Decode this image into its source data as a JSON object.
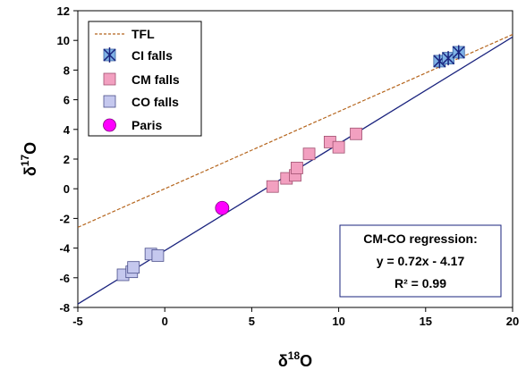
{
  "chart_data": {
    "type": "scatter",
    "xlabel": {
      "base": "δ",
      "sup": "18",
      "rest": "O"
    },
    "ylabel": {
      "base": "δ",
      "sup": "17",
      "rest": "O"
    },
    "xlim": [
      -5,
      20
    ],
    "ylim": [
      -8,
      12
    ],
    "xticks": [
      -5,
      0,
      5,
      10,
      15,
      20
    ],
    "yticks": [
      -8,
      -6,
      -4,
      -2,
      0,
      2,
      4,
      6,
      8,
      10,
      12
    ],
    "grid": false,
    "legend_position": "top-left",
    "lines": [
      {
        "name": "TFL",
        "slope": 0.52,
        "intercept": 0.0,
        "color": "#b5651d",
        "style": "dashed"
      },
      {
        "name": "regression",
        "slope": 0.72,
        "intercept": -4.17,
        "color": "#1a237e",
        "style": "solid"
      }
    ],
    "series": [
      {
        "name": "CI falls",
        "marker": "square-star",
        "color": "#7fb2e5",
        "points": [
          [
            15.8,
            8.6
          ],
          [
            16.3,
            8.8
          ],
          [
            16.9,
            9.2
          ]
        ]
      },
      {
        "name": "CM falls",
        "marker": "square",
        "color": "#f2a0c0",
        "points": [
          [
            6.2,
            0.15
          ],
          [
            7.0,
            0.7
          ],
          [
            7.5,
            0.9
          ],
          [
            7.6,
            1.4
          ],
          [
            8.3,
            2.35
          ],
          [
            9.5,
            3.15
          ],
          [
            10.0,
            2.8
          ],
          [
            11.0,
            3.7
          ]
        ]
      },
      {
        "name": "CO falls",
        "marker": "square",
        "color": "#c5c8ee",
        "points": [
          [
            -2.4,
            -5.8
          ],
          [
            -1.9,
            -5.6
          ],
          [
            -1.8,
            -5.3
          ],
          [
            -0.8,
            -4.4
          ],
          [
            -0.4,
            -4.5
          ]
        ]
      },
      {
        "name": "Paris",
        "marker": "circle",
        "color": "#ff00ff",
        "points": [
          [
            3.3,
            -1.3
          ]
        ]
      }
    ],
    "annotation": {
      "lines": [
        "CM-CO regression:",
        "y = 0.72x - 4.17",
        "R² = 0.99"
      ]
    }
  }
}
